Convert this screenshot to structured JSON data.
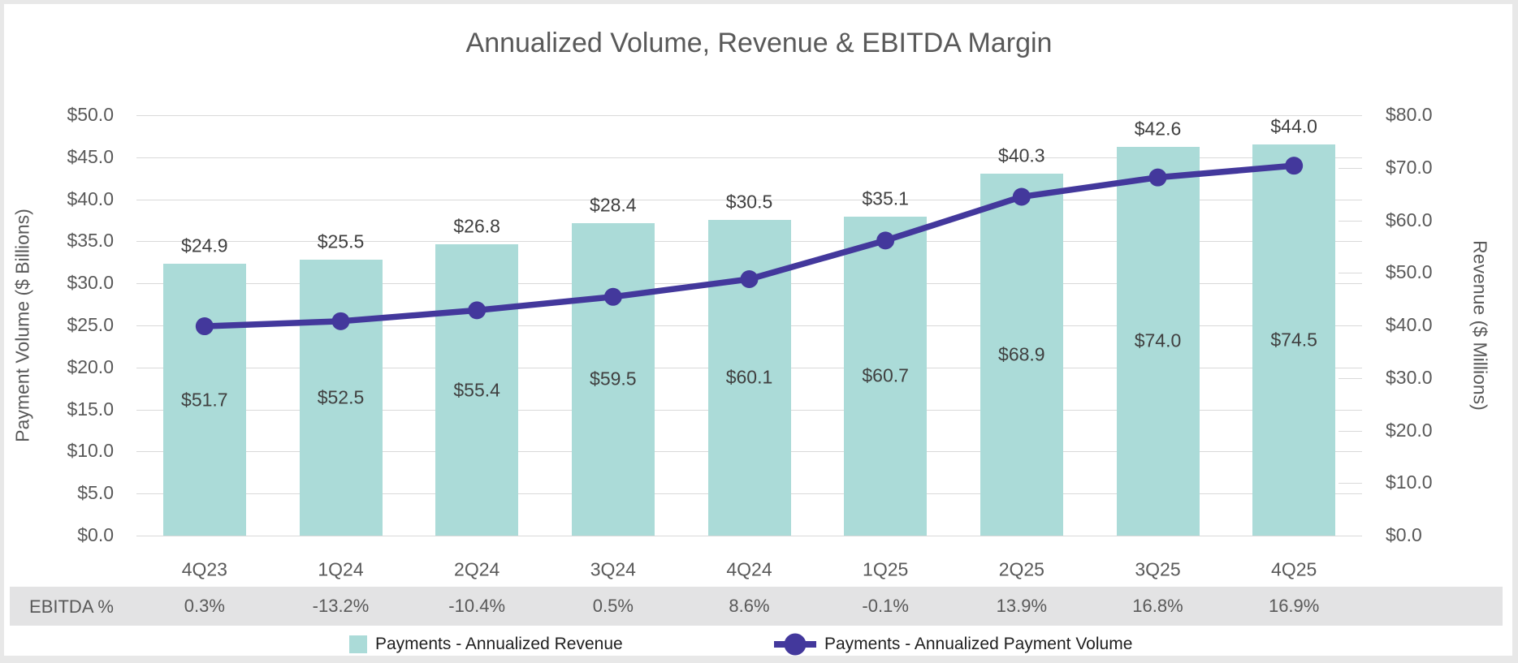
{
  "colors": {
    "bar_fill": "#abdbd8",
    "line_stroke": "#43389c",
    "grid": "#d9d9d9",
    "axis_text": "#595959",
    "data_label_text": "#404040",
    "ebitda_band_bg": "#e3e3e4",
    "page_frame": "#e8e8e8",
    "chart_bg": "#ffffff"
  },
  "chart_data": {
    "type": "combo",
    "title": "Annualized Volume, Revenue & EBITDA Margin",
    "categories": [
      "4Q23",
      "1Q24",
      "2Q24",
      "3Q24",
      "4Q24",
      "1Q25",
      "2Q25",
      "3Q25",
      "4Q25"
    ],
    "series": [
      {
        "name": "Payments - Annualized Revenue",
        "type": "bar",
        "axis": "right",
        "values": [
          51.7,
          52.5,
          55.4,
          59.5,
          60.1,
          60.7,
          68.9,
          74.0,
          74.5
        ],
        "labels": [
          "$51.7",
          "$52.5",
          "$55.4",
          "$59.5",
          "$60.1",
          "$60.7",
          "$68.9",
          "$74.0",
          "$74.5"
        ]
      },
      {
        "name": "Payments - Annualized Payment Volume",
        "type": "line",
        "axis": "left",
        "values": [
          24.9,
          25.5,
          26.8,
          28.4,
          30.5,
          35.1,
          40.3,
          42.6,
          44.0
        ],
        "labels": [
          "$24.9",
          "$25.5",
          "$26.8",
          "$28.4",
          "$30.5",
          "$35.1",
          "$40.3",
          "$42.6",
          "$44.0"
        ]
      }
    ],
    "ebitda_row": {
      "header": "EBITDA %",
      "values": [
        "0.3%",
        "-13.2%",
        "-10.4%",
        "0.5%",
        "8.6%",
        "-0.1%",
        "13.9%",
        "16.8%",
        "16.9%"
      ],
      "values_numeric": [
        0.3,
        -13.2,
        -10.4,
        0.5,
        8.6,
        -0.1,
        13.9,
        16.8,
        16.9
      ]
    },
    "left_axis": {
      "title": "Payment Volume ($ Billions)",
      "min": 0,
      "max": 50,
      "ticks": [
        "$50.0",
        "$45.0",
        "$40.0",
        "$35.0",
        "$30.0",
        "$25.0",
        "$20.0",
        "$15.0",
        "$10.0",
        "$5.0",
        "$0.0"
      ]
    },
    "right_axis": {
      "title": "Revenue ($ Millions)",
      "min": 0,
      "max": 80,
      "ticks": [
        "$80.0",
        "$70.0",
        "$60.0",
        "$50.0",
        "$40.0",
        "$30.0",
        "$20.0",
        "$10.0",
        "$0.0"
      ]
    },
    "grid": "horizontal",
    "legend_position": "bottom"
  }
}
